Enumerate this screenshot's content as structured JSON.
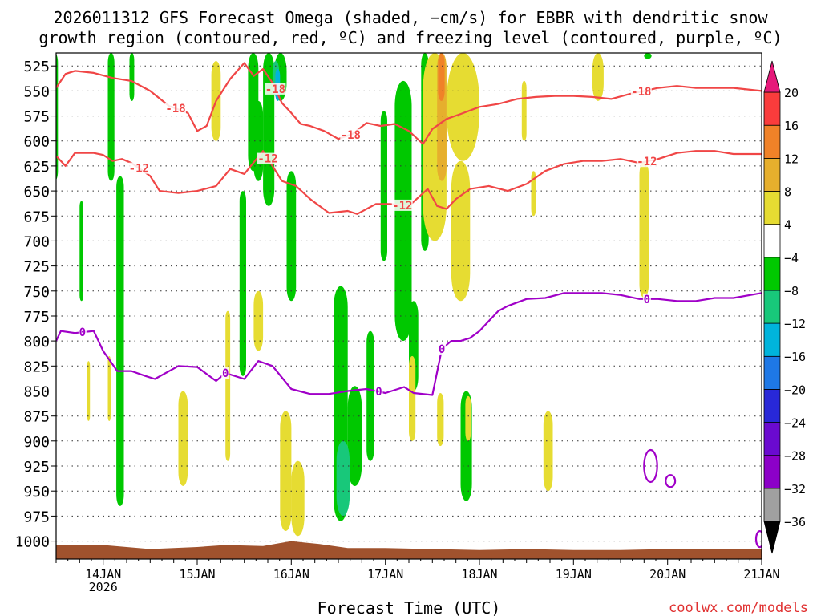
{
  "title_line1": "2026011312 GFS Forecast Omega (shaded, −cm/s) for EBBR with dendritic snow",
  "title_line2": "growth region (contoured, red, ºC) and freezing level (contoured, purple, ºC)",
  "xlabel": "Forecast Time (UTC)",
  "credit": "coolwx.com/models",
  "chart_data": {
    "type": "heatmap",
    "title": "2026011312 GFS Forecast Omega (shaded, −cm/s) for EBBR with dendritic snow growth region (contoured, red, ºC) and freezing level (contoured, purple, ºC)",
    "xlabel": "Forecast Time (UTC)",
    "ylabel": "",
    "x_ticks": [
      {
        "t": 0.5,
        "label": "14JAN",
        "sub": "2026"
      },
      {
        "t": 1.5,
        "label": "15JAN",
        "sub": ""
      },
      {
        "t": 2.5,
        "label": "16JAN",
        "sub": ""
      },
      {
        "t": 3.5,
        "label": "17JAN",
        "sub": ""
      },
      {
        "t": 4.5,
        "label": "18JAN",
        "sub": ""
      },
      {
        "t": 5.5,
        "label": "19JAN",
        "sub": ""
      },
      {
        "t": 6.5,
        "label": "20JAN",
        "sub": ""
      },
      {
        "t": 7.5,
        "label": "21JAN",
        "sub": ""
      }
    ],
    "xlim": [
      0,
      7.5
    ],
    "ylim_hpa": [
      512,
      1018
    ],
    "y_ticks": [
      525,
      550,
      575,
      600,
      625,
      650,
      675,
      700,
      725,
      750,
      775,
      800,
      825,
      850,
      875,
      900,
      925,
      950,
      975,
      1000
    ],
    "colorbar": {
      "levels": [
        -36,
        -32,
        -28,
        -24,
        -20,
        -16,
        -12,
        -8,
        -4,
        4,
        8,
        12,
        16,
        20
      ],
      "bins": [
        {
          "from": -36,
          "to": -32,
          "color": "#a0a0a0"
        },
        {
          "from": -32,
          "to": -28,
          "color": "#8c00c8"
        },
        {
          "from": -28,
          "to": -24,
          "color": "#6a0ad0"
        },
        {
          "from": -24,
          "to": -20,
          "color": "#2828d8"
        },
        {
          "from": -20,
          "to": -16,
          "color": "#1e78e6"
        },
        {
          "from": -16,
          "to": -12,
          "color": "#00b4dc"
        },
        {
          "from": -12,
          "to": -8,
          "color": "#18c87a"
        },
        {
          "from": -8,
          "to": -4,
          "color": "#00c800"
        },
        {
          "from": -4,
          "to": 4,
          "color": "#ffffff"
        },
        {
          "from": 4,
          "to": 8,
          "color": "#e6dc32"
        },
        {
          "from": 8,
          "to": 12,
          "color": "#e6af2d"
        },
        {
          "from": 12,
          "to": 16,
          "color": "#f08228"
        },
        {
          "from": 16,
          "to": 20,
          "color": "#fa3c3c"
        }
      ],
      "top_arrow_color": "#e6197a",
      "bottom_arrow_color": "#000000"
    },
    "colors": {
      "dgz": "#f04646",
      "freezing": "#a000c8",
      "terrain": "#a0522d",
      "grid": "#333333"
    },
    "contour_labels": {
      "dgz_upper": "-18",
      "dgz_lower": "-12",
      "freezing": "0"
    },
    "series": [
      {
        "name": "-18",
        "kind": "dgz_upper",
        "t": [
          0,
          0.1,
          0.2,
          0.4,
          0.6,
          0.8,
          1.0,
          1.2,
          1.4,
          1.5,
          1.6,
          1.7,
          1.85,
          2.0,
          2.1,
          2.2,
          2.3,
          2.4,
          2.5,
          2.6,
          2.7,
          2.85,
          3.0,
          3.15,
          3.3,
          3.45,
          3.6,
          3.75,
          3.9,
          4.0,
          4.15,
          4.3,
          4.5,
          4.7,
          4.9,
          5.1,
          5.3,
          5.5,
          5.7,
          5.9,
          6.1,
          6.25,
          6.4,
          6.6,
          6.8,
          7.0,
          7.2,
          7.5
        ],
        "p": [
          547,
          533,
          530,
          532,
          537,
          540,
          550,
          565,
          572,
          590,
          585,
          560,
          538,
          522,
          535,
          528,
          542,
          562,
          572,
          583,
          585,
          590,
          598,
          593,
          582,
          585,
          583,
          590,
          603,
          588,
          578,
          573,
          566,
          563,
          558,
          556,
          555,
          555,
          556,
          558,
          553,
          550,
          547,
          545,
          547,
          547,
          547,
          550
        ]
      },
      {
        "name": "-12",
        "kind": "dgz_lower",
        "t": [
          0,
          0.1,
          0.2,
          0.4,
          0.5,
          0.6,
          0.7,
          0.8,
          1.0,
          1.1,
          1.3,
          1.5,
          1.7,
          1.85,
          2.0,
          2.2,
          2.4,
          2.55,
          2.7,
          2.9,
          3.1,
          3.2,
          3.4,
          3.55,
          3.75,
          3.95,
          4.05,
          4.15,
          4.25,
          4.4,
          4.6,
          4.8,
          5.0,
          5.2,
          5.4,
          5.6,
          5.8,
          6.0,
          6.2,
          6.4,
          6.6,
          6.8,
          7.0,
          7.2,
          7.5
        ],
        "p": [
          615,
          625,
          612,
          612,
          614,
          620,
          618,
          622,
          635,
          650,
          652,
          650,
          645,
          628,
          633,
          610,
          640,
          645,
          658,
          672,
          670,
          673,
          663,
          663,
          665,
          648,
          665,
          668,
          658,
          648,
          645,
          650,
          643,
          630,
          623,
          620,
          620,
          618,
          622,
          618,
          612,
          610,
          610,
          613,
          613
        ]
      },
      {
        "name": "0",
        "kind": "freezing",
        "t": [
          0,
          0.05,
          0.2,
          0.4,
          0.5,
          0.65,
          0.8,
          0.95,
          1.05,
          1.3,
          1.5,
          1.7,
          1.8,
          2.0,
          2.15,
          2.3,
          2.5,
          2.7,
          2.9,
          3.1,
          3.3,
          3.5,
          3.7,
          3.8,
          4.0,
          4.1,
          4.2,
          4.3,
          4.4,
          4.5,
          4.6,
          4.7,
          4.8,
          5.0,
          5.2,
          5.4,
          5.6,
          5.8,
          6.0,
          6.2,
          6.4,
          6.6,
          6.8,
          7.0,
          7.2,
          7.5
        ],
        "p": [
          800,
          790,
          792,
          790,
          810,
          830,
          830,
          835,
          838,
          825,
          826,
          840,
          832,
          838,
          820,
          825,
          848,
          853,
          853,
          850,
          848,
          852,
          846,
          852,
          854,
          808,
          800,
          800,
          797,
          790,
          780,
          770,
          765,
          758,
          757,
          752,
          752,
          752,
          754,
          758,
          758,
          760,
          760,
          757,
          757,
          752
        ]
      }
    ],
    "omega_regions": [
      {
        "value": -6,
        "t": [
          -0.05,
          0.02
        ],
        "p": [
          512,
          640
        ]
      },
      {
        "value": -6,
        "t": [
          0.25,
          0.29
        ],
        "p": [
          660,
          760
        ]
      },
      {
        "value": -6,
        "t": [
          0.55,
          0.62
        ],
        "p": [
          512,
          640
        ]
      },
      {
        "value": -6,
        "t": [
          0.64,
          0.72
        ],
        "p": [
          635,
          965
        ]
      },
      {
        "value": -6,
        "t": [
          0.78,
          0.83
        ],
        "p": [
          512,
          560
        ]
      },
      {
        "value": 5,
        "t": [
          0.33,
          0.36
        ],
        "p": [
          820,
          880
        ]
      },
      {
        "value": 5,
        "t": [
          0.55,
          0.58
        ],
        "p": [
          815,
          880
        ]
      },
      {
        "value": 5,
        "t": [
          1.3,
          1.4
        ],
        "p": [
          850,
          945
        ]
      },
      {
        "value": 5,
        "t": [
          1.65,
          1.75
        ],
        "p": [
          520,
          600
        ]
      },
      {
        "value": 5,
        "t": [
          1.8,
          1.85
        ],
        "p": [
          770,
          920
        ]
      },
      {
        "value": 5,
        "t": [
          2.1,
          2.2
        ],
        "p": [
          750,
          810
        ]
      },
      {
        "value": 5,
        "t": [
          2.38,
          2.5
        ],
        "p": [
          870,
          990
        ]
      },
      {
        "value": 5,
        "t": [
          2.5,
          2.64
        ],
        "p": [
          920,
          995
        ]
      },
      {
        "value": -6,
        "t": [
          1.95,
          2.02
        ],
        "p": [
          650,
          835
        ]
      },
      {
        "value": -6,
        "t": [
          2.04,
          2.15
        ],
        "p": [
          512,
          630
        ]
      },
      {
        "value": -6,
        "t": [
          2.1,
          2.2
        ],
        "p": [
          560,
          640
        ]
      },
      {
        "value": -6,
        "t": [
          2.2,
          2.32
        ],
        "p": [
          512,
          665
        ]
      },
      {
        "value": -6,
        "t": [
          2.32,
          2.45
        ],
        "p": [
          512,
          560
        ]
      },
      {
        "value": -10,
        "t": [
          2.3,
          2.37
        ],
        "p": [
          520,
          555
        ]
      },
      {
        "value": -14,
        "t": [
          2.33,
          2.38
        ],
        "p": [
          528,
          560
        ]
      },
      {
        "value": -6,
        "t": [
          2.45,
          2.55
        ],
        "p": [
          630,
          760
        ]
      },
      {
        "value": -6,
        "t": [
          2.95,
          3.1
        ],
        "p": [
          745,
          980
        ]
      },
      {
        "value": -6,
        "t": [
          3.1,
          3.25
        ],
        "p": [
          845,
          945
        ]
      },
      {
        "value": -10,
        "t": [
          2.98,
          3.12
        ],
        "p": [
          900,
          975
        ]
      },
      {
        "value": -6,
        "t": [
          3.3,
          3.38
        ],
        "p": [
          790,
          920
        ]
      },
      {
        "value": -6,
        "t": [
          3.45,
          3.52
        ],
        "p": [
          570,
          720
        ]
      },
      {
        "value": -6,
        "t": [
          3.6,
          3.78
        ],
        "p": [
          540,
          800
        ]
      },
      {
        "value": -6,
        "t": [
          3.75,
          3.85
        ],
        "p": [
          760,
          850
        ]
      },
      {
        "value": -6,
        "t": [
          3.88,
          3.96
        ],
        "p": [
          512,
          710
        ]
      },
      {
        "value": -6,
        "t": [
          4.3,
          4.42
        ],
        "p": [
          850,
          960
        ]
      },
      {
        "value": 5,
        "t": [
          3.9,
          4.15
        ],
        "p": [
          512,
          700
        ]
      },
      {
        "value": 5,
        "t": [
          4.15,
          4.5
        ],
        "p": [
          512,
          620
        ]
      },
      {
        "value": 5,
        "t": [
          4.2,
          4.4
        ],
        "p": [
          620,
          760
        ]
      },
      {
        "value": 10,
        "t": [
          4.05,
          4.15
        ],
        "p": [
          512,
          640
        ]
      },
      {
        "value": 13,
        "t": [
          4.06,
          4.13
        ],
        "p": [
          512,
          560
        ]
      },
      {
        "value": 5,
        "t": [
          3.75,
          3.82
        ],
        "p": [
          815,
          900
        ]
      },
      {
        "value": 5,
        "t": [
          4.05,
          4.12
        ],
        "p": [
          852,
          905
        ]
      },
      {
        "value": 5,
        "t": [
          4.35,
          4.41
        ],
        "p": [
          855,
          900
        ]
      },
      {
        "value": 5,
        "t": [
          4.95,
          5.0
        ],
        "p": [
          540,
          600
        ]
      },
      {
        "value": 5,
        "t": [
          5.05,
          5.1
        ],
        "p": [
          630,
          675
        ]
      },
      {
        "value": 5,
        "t": [
          5.18,
          5.28
        ],
        "p": [
          870,
          950
        ]
      },
      {
        "value": 5,
        "t": [
          5.7,
          5.82
        ],
        "p": [
          512,
          560
        ]
      },
      {
        "value": 5,
        "t": [
          6.2,
          6.3
        ],
        "p": [
          620,
          757
        ]
      },
      {
        "value": -6,
        "t": [
          6.25,
          6.33
        ],
        "p": [
          512,
          518
        ]
      }
    ],
    "closed_contours": [
      {
        "kind": "freezing",
        "t": 6.32,
        "p": 925,
        "rt": 0.07,
        "rp": 16
      },
      {
        "kind": "freezing",
        "t": 6.53,
        "p": 940,
        "rt": 0.05,
        "rp": 6
      },
      {
        "kind": "freezing",
        "t": 7.48,
        "p": 998,
        "rt": 0.04,
        "rp": 8
      }
    ],
    "terrain": {
      "t": [
        0,
        0.5,
        1.0,
        1.5,
        1.8,
        2.2,
        2.5,
        2.8,
        3.1,
        3.5,
        4.0,
        4.5,
        5.0,
        5.5,
        6.0,
        6.5,
        7.0,
        7.5
      ],
      "p_top": [
        1004,
        1004,
        1008,
        1006,
        1004,
        1005,
        1000,
        1003,
        1007,
        1007,
        1008,
        1009,
        1008,
        1009,
        1009,
        1008,
        1008,
        1008
      ],
      "p_bottom": 1018
    }
  }
}
